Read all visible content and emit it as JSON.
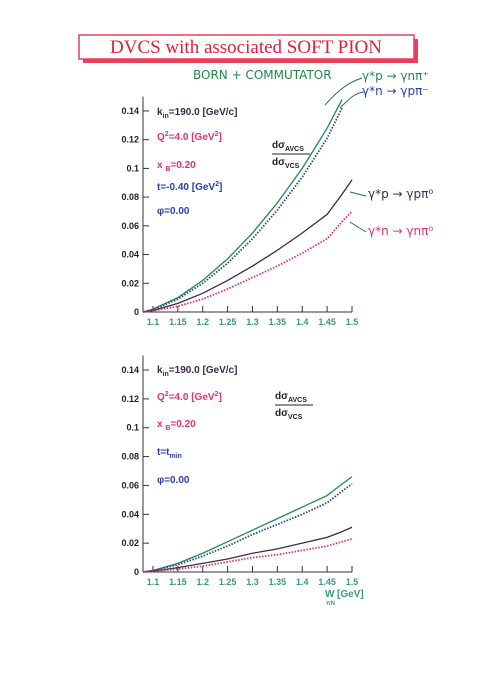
{
  "title": "DVCS with associated SOFT PION",
  "chart_data": [
    {
      "type": "line",
      "annotations": [
        "BORN + COMMUTATOR"
      ],
      "x": [
        1.08,
        1.1,
        1.15,
        1.2,
        1.25,
        1.3,
        1.35,
        1.4,
        1.45,
        1.48,
        1.5
      ],
      "series": [
        {
          "name": "γ*p → γnπ⁺",
          "color": "#1f8a4c",
          "style": "solid",
          "values": [
            0,
            0.002,
            0.01,
            0.022,
            0.037,
            0.055,
            0.076,
            0.1,
            0.128,
            0.148,
            null
          ]
        },
        {
          "name": "γ*n → γpπ⁻",
          "color": "#2b3fa8",
          "style": "dotted",
          "values": [
            0,
            0.0015,
            0.009,
            0.02,
            0.034,
            0.051,
            0.071,
            0.094,
            0.121,
            0.142,
            null
          ]
        },
        {
          "name": "γ*p → γpπ⁰",
          "color": "#3b2a4a",
          "style": "solid",
          "values": [
            0,
            0.001,
            0.006,
            0.013,
            0.022,
            0.032,
            0.043,
            0.055,
            0.068,
            0.082,
            0.092
          ]
        },
        {
          "name": "γ*n → γnπ⁰",
          "color": "#e8306a",
          "style": "dotted",
          "values": [
            0,
            0.0008,
            0.004,
            0.009,
            0.016,
            0.024,
            0.032,
            0.041,
            0.051,
            0.063,
            0.07
          ]
        }
      ],
      "xlim": [
        1.08,
        1.5
      ],
      "xticks": [
        1.1,
        1.15,
        1.2,
        1.25,
        1.3,
        1.35,
        1.4,
        1.45,
        1.5
      ],
      "ylim": [
        0,
        0.15
      ],
      "yticks": [
        0,
        0.02,
        0.04,
        0.06,
        0.08,
        0.1,
        0.12,
        0.14
      ],
      "info": [
        {
          "parts": [
            "k",
            "in",
            "=190.0 [GeV/c]"
          ],
          "color": "#3b2a4a"
        },
        {
          "parts": [
            "Q",
            "2",
            "=4.0 [GeV",
            "2",
            "]"
          ],
          "color": "#e8306a"
        },
        {
          "parts": [
            "x ",
            "B",
            "=0.20"
          ],
          "color": "#e8306a"
        },
        {
          "parts": [
            "t=-0.40 [GeV",
            "2",
            "]"
          ],
          "color": "#2b3fa8"
        },
        {
          "parts": [
            "φ=0.00"
          ],
          "color": "#2b3fa8"
        }
      ],
      "ratio": {
        "num": [
          "dσ",
          "AVCS"
        ],
        "den": [
          "dσ",
          "VCS"
        ]
      }
    },
    {
      "type": "line",
      "x": [
        1.08,
        1.1,
        1.15,
        1.2,
        1.25,
        1.3,
        1.35,
        1.4,
        1.45,
        1.48,
        1.5
      ],
      "series": [
        {
          "color": "#1f8a4c",
          "style": "solid",
          "values": [
            0,
            0.001,
            0.006,
            0.013,
            0.021,
            0.029,
            0.037,
            0.045,
            0.053,
            0.061,
            0.066
          ]
        },
        {
          "color": "#2b3fa8",
          "style": "dotted",
          "values": [
            0,
            0.001,
            0.005,
            0.011,
            0.018,
            0.026,
            0.033,
            0.04,
            0.048,
            0.056,
            0.061
          ]
        },
        {
          "color": "#3b2a4a",
          "style": "solid",
          "values": [
            0,
            0.0005,
            0.003,
            0.006,
            0.009,
            0.013,
            0.016,
            0.02,
            0.024,
            0.028,
            0.031
          ]
        },
        {
          "color": "#e8306a",
          "style": "dotted",
          "values": [
            0,
            0.0004,
            0.002,
            0.004,
            0.007,
            0.01,
            0.012,
            0.015,
            0.018,
            0.021,
            0.023
          ]
        }
      ],
      "xlim": [
        1.08,
        1.5
      ],
      "xticks": [
        1.1,
        1.15,
        1.2,
        1.25,
        1.3,
        1.35,
        1.4,
        1.45,
        1.5
      ],
      "ylim": [
        0,
        0.15
      ],
      "yticks": [
        0,
        0.02,
        0.04,
        0.06,
        0.08,
        0.1,
        0.12,
        0.14
      ],
      "xlabel": [
        "W",
        "[GeV]",
        "πN"
      ],
      "info": [
        {
          "parts": [
            "k",
            "in",
            "=190.0 [GeV/c]"
          ],
          "color": "#3b2a4a"
        },
        {
          "parts": [
            "Q",
            "2",
            "=4.0 [GeV",
            "2",
            "]"
          ],
          "color": "#e8306a"
        },
        {
          "parts": [
            "x ",
            "B",
            "=0.20"
          ],
          "color": "#e8306a"
        },
        {
          "parts": [
            "t=t",
            "min"
          ],
          "color": "#2b3fa8"
        },
        {
          "parts": [
            "φ=0.00"
          ],
          "color": "#2b3fa8"
        }
      ],
      "ratio": {
        "num": [
          "dσ",
          "AVCS"
        ],
        "den": [
          "dσ",
          "VCS"
        ]
      }
    }
  ]
}
